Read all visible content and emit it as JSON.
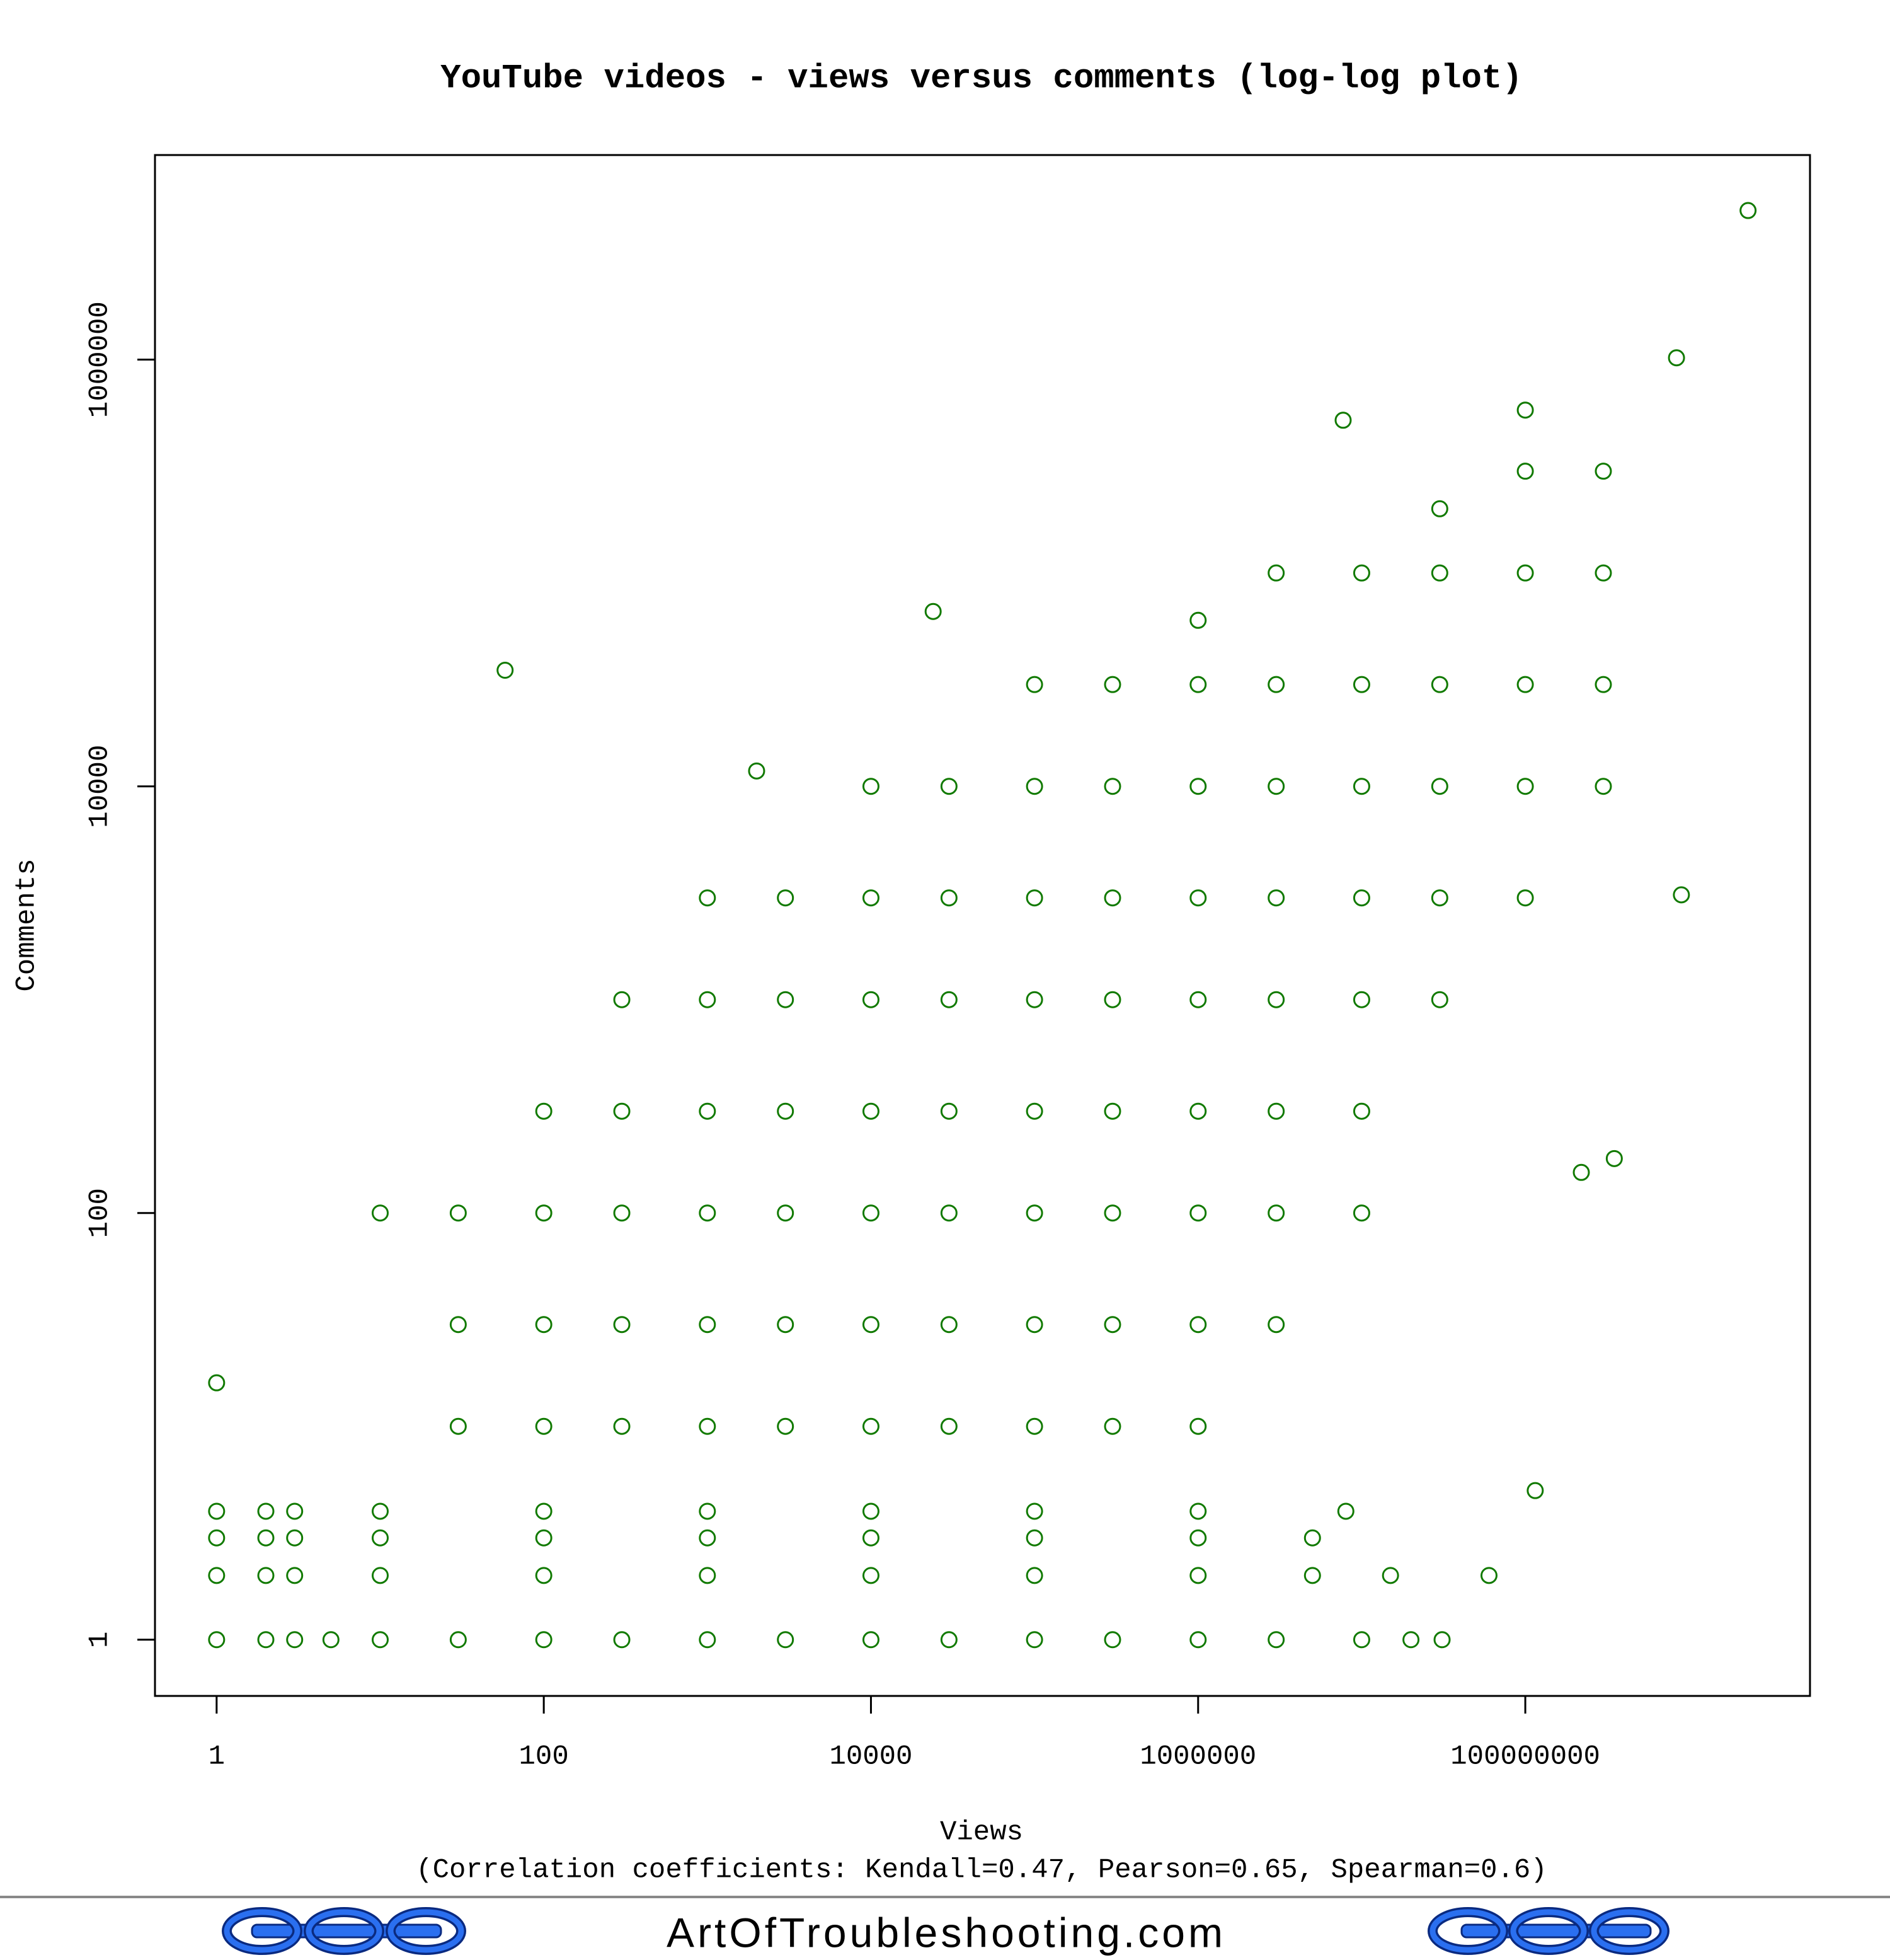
{
  "chart_data": {
    "type": "scatter",
    "title": "YouTube videos - views versus comments (log-log plot)",
    "x_label": "Views",
    "subtitle": "(Correlation coefficients: Kendall=0.47, Pearson=0.65, Spearman=0.6)",
    "y_label": "Comments",
    "color": "#117a00",
    "log_x": true,
    "log_y": true,
    "xlim": [
      0.42,
      5500000000
    ],
    "ylim": [
      0.545,
      9100000
    ],
    "xticks": [
      1,
      100,
      10000,
      1000000,
      100000000
    ],
    "yticks": [
      1,
      100,
      10000,
      1000000
    ],
    "x": [
      1,
      2,
      3,
      5,
      10,
      30,
      100,
      300,
      1000,
      3000,
      10000,
      30000,
      100000,
      300000,
      1000000,
      3000000,
      10000000,
      20000000,
      1,
      2,
      3,
      10,
      100,
      1000,
      10000,
      100000,
      1000000,
      5000000,
      15000000,
      1,
      2,
      3,
      10,
      100,
      1000,
      10000,
      100000,
      1000000,
      5000000,
      1,
      2,
      3,
      10,
      100,
      1000,
      10000,
      100000,
      1000000,
      8000000,
      30,
      30,
      30,
      100,
      100,
      100,
      100,
      300,
      300,
      300,
      300,
      300,
      1000,
      1000,
      1000,
      1000,
      1000,
      1000,
      3000,
      3000,
      3000,
      3000,
      3000,
      3000,
      10000,
      10000,
      10000,
      10000,
      10000,
      10000,
      10000,
      30000,
      30000,
      30000,
      30000,
      30000,
      30000,
      30000,
      100000,
      100000,
      100000,
      100000,
      100000,
      100000,
      100000,
      100000,
      300000,
      300000,
      300000,
      300000,
      300000,
      300000,
      300000,
      300000,
      1000000,
      1000000,
      1000000,
      1000000,
      1000000,
      1000000,
      1000000,
      1000000,
      1000000,
      3000000,
      3000000,
      3000000,
      3000000,
      3000000,
      3000000,
      3000000,
      3000000,
      10000000,
      10000000,
      10000000,
      10000000,
      10000000,
      10000000,
      10000000,
      30000000,
      30000000,
      30000000,
      30000000,
      30000000,
      30000000,
      100000000,
      100000000,
      100000000,
      100000000,
      100000000,
      300000000,
      300000000,
      300000000,
      300000000,
      2300000000,
      58,
      7700000,
      840000000,
      900000000,
      115000000,
      60000000,
      31000000,
      1,
      350000000,
      220000000,
      10,
      24000,
      100000000,
      2000
    ],
    "values": [
      1,
      1,
      1,
      1,
      1,
      1,
      1,
      1,
      1,
      1,
      1,
      1,
      1,
      1,
      1,
      1,
      1,
      1,
      2,
      2,
      2,
      2,
      2,
      2,
      2,
      2,
      2,
      2,
      2,
      3,
      3,
      3,
      3,
      3,
      3,
      3,
      3,
      3,
      3,
      4,
      4,
      4,
      4,
      4,
      4,
      4,
      4,
      4,
      4,
      10,
      30,
      100,
      10,
      30,
      100,
      300,
      10,
      30,
      100,
      300,
      1000,
      10,
      30,
      100,
      300,
      1000,
      3000,
      10,
      30,
      100,
      300,
      1000,
      3000,
      10,
      30,
      100,
      300,
      1000,
      3000,
      10000,
      10,
      30,
      100,
      300,
      1000,
      3000,
      10000,
      10,
      30,
      100,
      300,
      1000,
      3000,
      10000,
      30000,
      10,
      30,
      100,
      300,
      1000,
      3000,
      10000,
      30000,
      10,
      30,
      100,
      300,
      1000,
      3000,
      10000,
      30000,
      60000,
      30,
      100,
      300,
      1000,
      3000,
      10000,
      30000,
      100000,
      100,
      300,
      1000,
      3000,
      10000,
      30000,
      100000,
      1000,
      3000,
      10000,
      30000,
      100000,
      200000,
      3000,
      10000,
      30000,
      100000,
      300000,
      10000,
      30000,
      100000,
      300000,
      5000000,
      35000,
      520000,
      1020000,
      3100,
      5,
      2,
      1,
      16,
      180,
      155,
      100,
      66000,
      580000,
      11800
    ]
  },
  "footer": {
    "site": "ArtOfTroubleshooting.com"
  }
}
